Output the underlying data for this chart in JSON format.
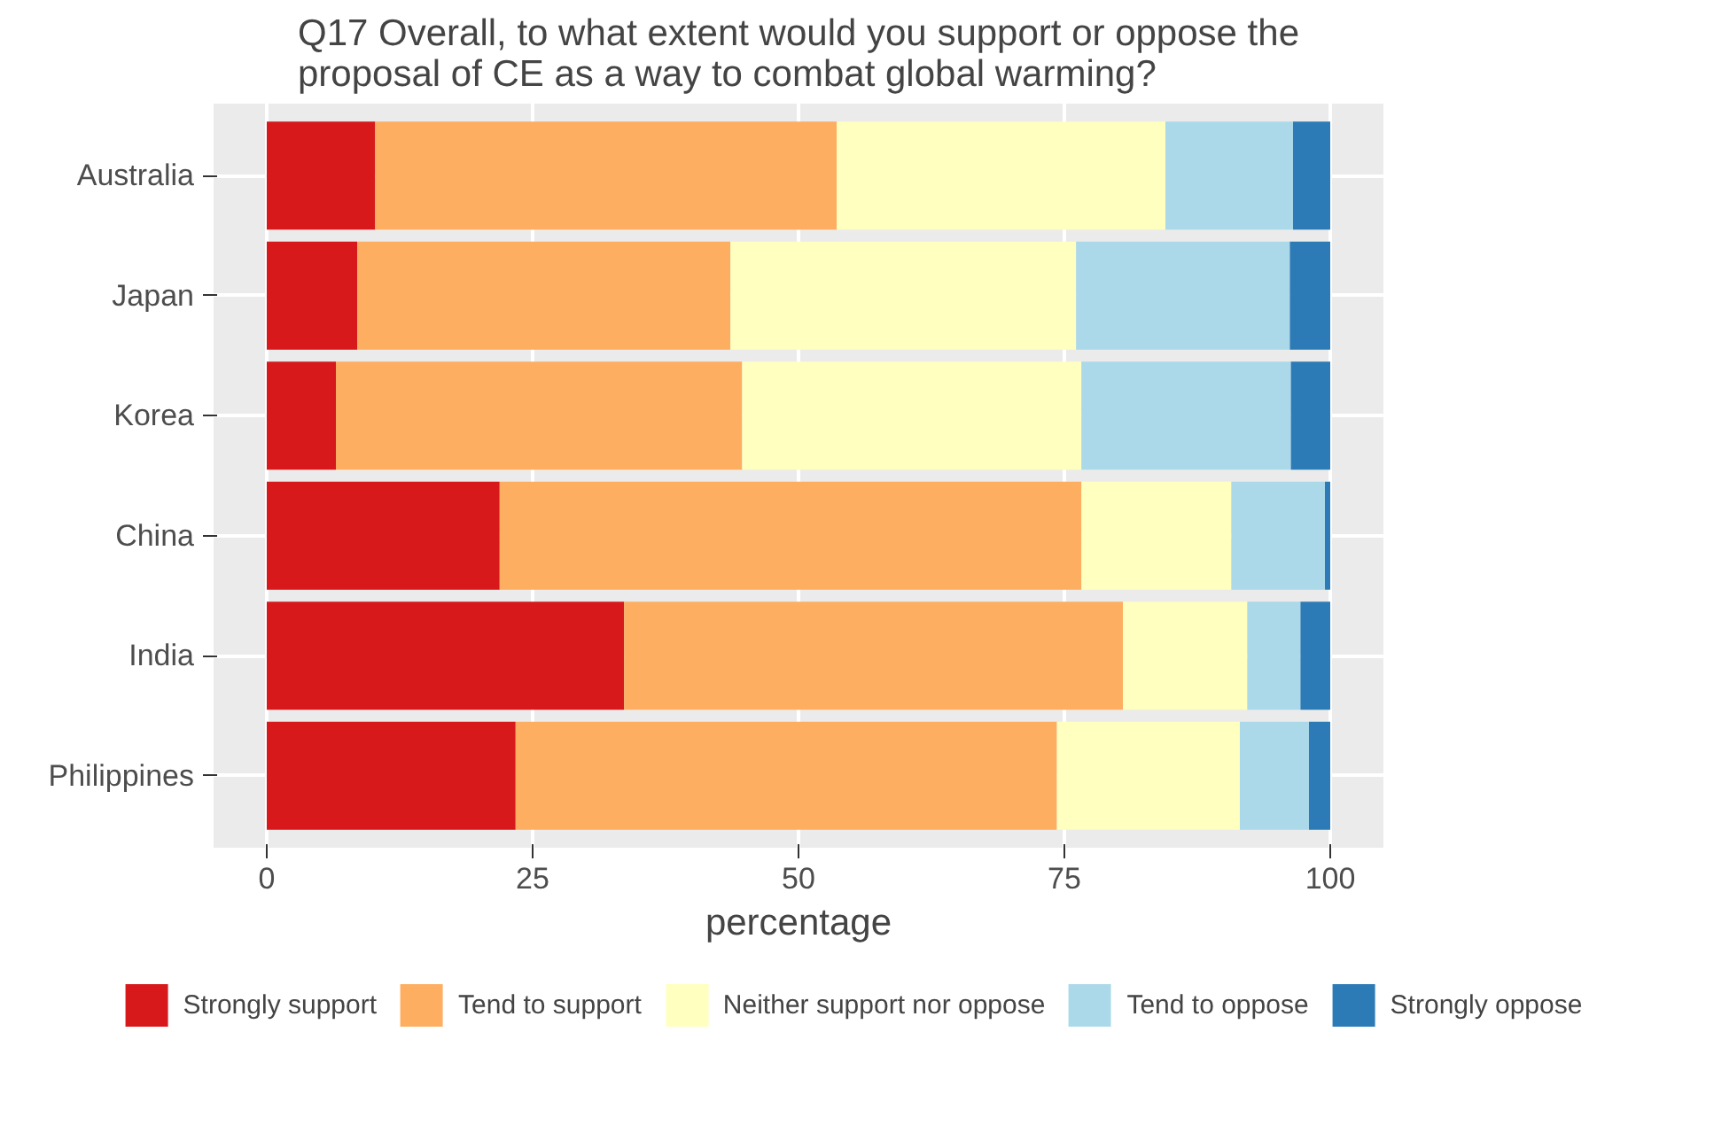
{
  "chart_data": {
    "type": "bar",
    "orientation": "horizontal",
    "stacked": true,
    "title": "Q17 Overall, to what extent would you support or oppose the proposal of CE as a way to combat global warming?",
    "xlabel": "percentage",
    "categories": [
      "Australia",
      "Japan",
      "Korea",
      "China",
      "India",
      "Philippines"
    ],
    "series": [
      {
        "name": "Strongly support",
        "color": "#d7191c",
        "values": [
          10.2,
          8.5,
          6.5,
          21.9,
          33.6,
          23.4
        ]
      },
      {
        "name": "Tend to support",
        "color": "#fdae61",
        "values": [
          43.4,
          35.1,
          38.2,
          54.7,
          46.9,
          50.9
        ]
      },
      {
        "name": "Neither support nor oppose",
        "color": "#ffffbf",
        "values": [
          30.9,
          32.5,
          31.9,
          14.1,
          11.7,
          17.2
        ]
      },
      {
        "name": "Tend to oppose",
        "color": "#abd9e9",
        "values": [
          12.0,
          20.1,
          19.7,
          8.8,
          5.0,
          6.5
        ]
      },
      {
        "name": "Strongly oppose",
        "color": "#2c7bb6",
        "values": [
          3.5,
          3.8,
          3.7,
          0.5,
          2.8,
          2.0
        ]
      }
    ],
    "xlim": [
      -5,
      105
    ],
    "xticks": [
      0,
      25,
      50,
      75,
      100
    ],
    "grid": true,
    "legend": "bottom"
  }
}
